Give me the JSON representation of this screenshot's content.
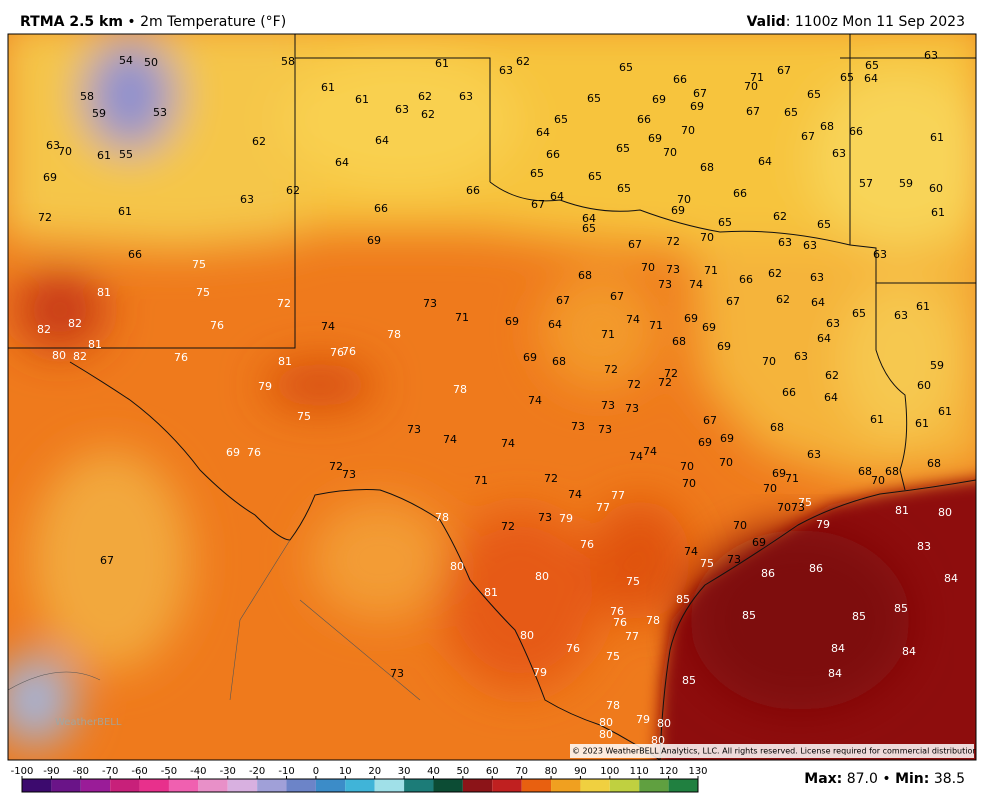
{
  "header": {
    "model": "RTMA 2.5 km",
    "separator": "•",
    "variable": "2m Temperature (°F)",
    "valid_label": "Valid",
    "valid_time": ": 1100z Mon 11 Sep 2023"
  },
  "map": {
    "station_values": [
      54,
      50,
      58,
      61,
      63,
      62,
      65,
      66,
      71,
      67,
      65,
      63,
      65,
      64,
      58,
      59,
      53,
      61,
      61,
      63,
      62,
      62,
      63,
      65,
      69,
      67,
      70,
      69,
      65,
      63,
      70,
      61,
      55,
      62,
      64,
      64,
      65,
      66,
      70,
      67,
      65,
      68,
      66,
      67,
      61,
      69,
      64,
      66,
      65,
      69,
      70,
      63,
      64,
      68,
      63,
      62,
      66,
      65,
      65,
      65,
      64,
      67,
      70,
      66,
      57,
      59,
      60,
      72,
      61,
      66,
      69,
      64,
      65,
      65,
      62,
      65,
      61,
      69,
      67,
      72,
      70,
      63,
      63,
      63,
      66,
      75,
      70,
      73,
      71,
      66,
      62,
      63,
      68,
      81,
      75,
      72,
      73,
      74,
      73,
      67,
      67,
      67,
      62,
      64,
      65,
      63,
      61,
      82,
      82,
      76,
      74,
      78,
      71,
      69,
      64,
      74,
      71,
      69,
      69,
      63,
      64,
      81,
      80,
      82,
      76,
      81,
      76,
      76,
      71,
      68,
      69,
      70,
      63,
      59,
      69,
      68,
      72,
      72,
      72,
      62,
      60,
      79,
      78,
      72,
      74,
      73,
      73,
      66,
      64,
      61,
      75,
      73,
      74,
      74,
      73,
      73,
      67,
      61,
      61,
      68,
      69,
      76,
      74,
      74,
      69,
      69,
      63,
      68,
      72,
      73,
      70,
      70,
      69,
      71,
      68,
      70,
      68,
      71,
      72,
      74,
      77,
      70,
      70,
      75,
      78,
      79,
      73,
      72,
      77,
      70,
      73,
      81,
      80,
      79,
      70,
      76,
      69,
      74,
      83,
      67,
      80,
      75,
      73,
      86,
      86,
      84,
      80,
      75,
      81,
      85,
      85,
      78,
      76,
      76,
      85,
      85,
      80,
      77,
      76,
      75,
      84,
      84,
      73,
      79,
      84,
      85,
      78,
      80,
      80,
      79,
      80,
      80
    ],
    "copyright": "© 2023 WeatherBELL Analytics, LLC. All rights reserved. License required for commercial distribution.",
    "logo": "WeatherBELL"
  },
  "colorbar": {
    "ticks": [
      -100,
      -90,
      -80,
      -70,
      -60,
      -50,
      -40,
      -30,
      -20,
      -10,
      0,
      10,
      20,
      30,
      40,
      50,
      60,
      70,
      80,
      90,
      100,
      110,
      120,
      130
    ]
  },
  "footer": {
    "max_label": "Max:",
    "max": "87.0",
    "separator": "•",
    "min_label": "Min:",
    "min": "38.5"
  }
}
